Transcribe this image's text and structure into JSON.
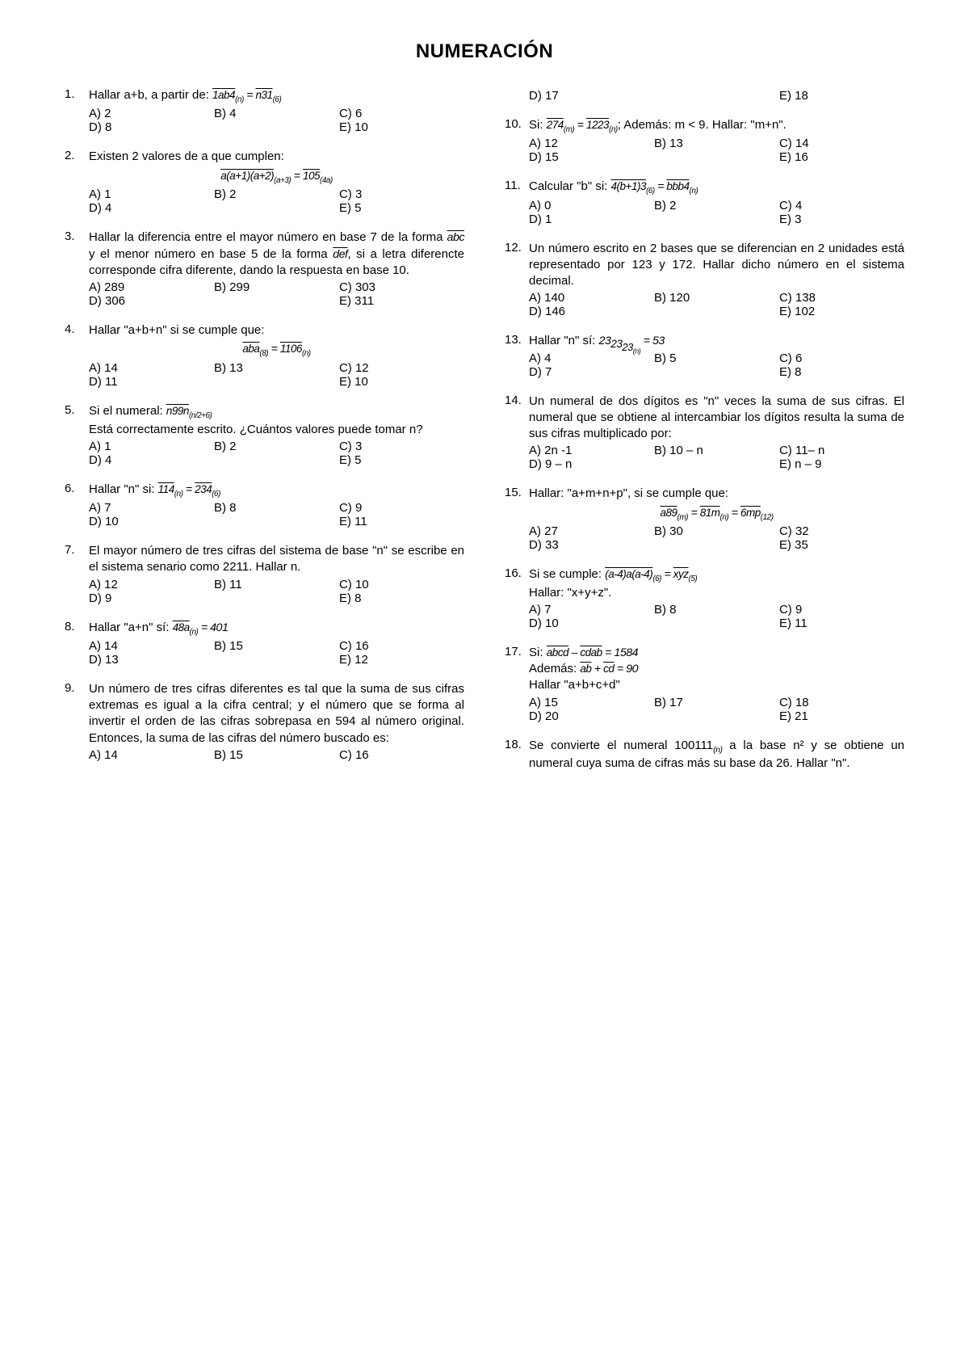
{
  "title": "NUMERACIÓN",
  "options_labels": {
    "a": "A)",
    "b": "B)",
    "c": "C)",
    "d": "D)",
    "e": "E)"
  },
  "left": [
    {
      "num": "1.",
      "text_pre": "Hallar a+b, a partir de: ",
      "eq_ov1": "1ab4",
      "eq_sub1": "(n)",
      "eq_mid": " = ",
      "eq_ov2": "n31",
      "eq_sub2": "(6)",
      "opts": {
        "a": "2",
        "b": "4",
        "c": "6",
        "d": "8",
        "e": "10"
      }
    },
    {
      "num": "2.",
      "text": "Existen 2 valores de a que cumplen:",
      "eqc_ov1": "a(a+1)(a+2)",
      "eqc_sub1": "(a+3)",
      "eqc_mid": " = ",
      "eqc_ov2": "105",
      "eqc_sub2": "(4a)",
      "opts": {
        "a": "1",
        "b": "2",
        "c": "3",
        "d": "4",
        "e": "5"
      }
    },
    {
      "num": "3.",
      "t1": "Hallar la diferencia entre el mayor número en base 7 de la forma ",
      "ov1": "abc",
      "t2": " y el menor número en base 5 de la forma ",
      "ov2": "def",
      "t3": ", si a letra diferencte corresponde cifra diferente, dando la respuesta en base 10.",
      "opts": {
        "a": "289",
        "b": "299",
        "c": "303",
        "d": "306",
        "e": "311"
      }
    },
    {
      "num": "4.",
      "text": "Hallar \"a+b+n\" si se cumple que:",
      "eqc_ov1": "aba",
      "eqc_sub1": "(8)",
      "eqc_mid": " = ",
      "eqc_ov2": "1106",
      "eqc_sub2": "(n)",
      "opts": {
        "a": "14",
        "b": "13",
        "c": "12",
        "d": "11",
        "e": "10"
      }
    },
    {
      "num": "5.",
      "t1": "Si el numeral: ",
      "ov1": "n99n",
      "sub1": "(n/2+6)",
      "t2": "Está correctamente escrito. ¿Cuántos valores puede tomar n?",
      "opts": {
        "a": "1",
        "b": "2",
        "c": "3",
        "d": "4",
        "e": "5"
      }
    },
    {
      "num": "6.",
      "t1": "Hallar \"n\" si: ",
      "ov1": "114",
      "sub1": "(n)",
      "mid": " = ",
      "ov2": "234",
      "sub2": "(6)",
      "opts": {
        "a": "7",
        "b": "8",
        "c": "9",
        "d": "10",
        "e": "11"
      }
    },
    {
      "num": "7.",
      "text": "El mayor número de tres cifras del sistema de base \"n\" se escribe en el sistema senario como 2211. Hallar n.",
      "opts": {
        "a": "12",
        "b": "11",
        "c": "10",
        "d": "9",
        "e": "8"
      }
    },
    {
      "num": "8.",
      "t1": "Hallar \"a+n\" sí: ",
      "ov1": "48a",
      "sub1": "(n)",
      "mid": " = 401",
      "opts": {
        "a": "14",
        "b": "15",
        "c": "16",
        "d": "13",
        "e": "12"
      }
    },
    {
      "num": "9.",
      "text": "Un número de tres cifras diferentes es tal que la suma de sus cifras extremas es igual a la cifra central; y el número que se forma al invertir el orden de las cifras sobrepasa en 594 al número original. Entonces, la suma de las cifras del número buscado es:",
      "opts": {
        "a": "14",
        "b": "15",
        "c": "16"
      }
    }
  ],
  "right": [
    {
      "only_opts": true,
      "opts": {
        "d": "17",
        "e": "18"
      }
    },
    {
      "num": "10.",
      "t1": "Si: ",
      "ov1": "274",
      "sub1": "(m)",
      "mid": " = ",
      "ov2": "1223",
      "sub2": "(n)",
      "t2": "; Además: m < 9. Hallar: \"m+n\".",
      "opts": {
        "a": "12",
        "b": "13",
        "c": "14",
        "d": "15",
        "e": "16"
      }
    },
    {
      "num": "11.",
      "t1": "Calcular \"b\" si: ",
      "ov1": "4(b+1)3",
      "sub1": "(6)",
      "mid": " = ",
      "ov2": "bbb4",
      "sub2": "(n)",
      "opts": {
        "a": "0",
        "b": "2",
        "c": "4",
        "d": "1",
        "e": "3"
      }
    },
    {
      "num": "12.",
      "text": "Un número escrito en 2 bases que se diferencian en 2 unidades está representado por 123 y 172. Hallar dicho número en el sistema decimal.",
      "opts": {
        "a": "140",
        "b": "120",
        "c": "138",
        "d": "146",
        "e": "102"
      }
    },
    {
      "num": "13.",
      "t1": "Hallar \"n\" sí: ",
      "nested_eq": true,
      "neq_a": "23",
      "neq_b": "23",
      "neq_c": "23",
      "neq_sub": "(n)",
      "neq_rhs": " = 53",
      "opts": {
        "a": "4",
        "b": "5",
        "c": "6",
        "d": "7",
        "e": "8"
      }
    },
    {
      "num": "14.",
      "text": "Un numeral de dos dígitos es \"n\" veces la suma de sus cifras. El numeral que se obtiene al intercambiar los dígitos resulta la suma de sus cifras multiplicado por:",
      "opts": {
        "a": "2n -1",
        "b": "10 – n",
        "c": "11– n",
        "d": "9 – n",
        "e": "n – 9"
      }
    },
    {
      "num": "15.",
      "text": "Hallar: \"a+m+n+p\", si se cumple que:",
      "eqc_ov1": "a89",
      "eqc_sub1": "(m)",
      "eqc_mid": " = ",
      "eqc_ov2": "81m",
      "eqc_sub2": "(n)",
      "eqc_mid2": " = ",
      "eqc_ov3": "6mp",
      "eqc_sub3": "(12)",
      "opts": {
        "a": "27",
        "b": "30",
        "c": "32",
        "d": "33",
        "e": "35"
      }
    },
    {
      "num": "16.",
      "t1": "Si se cumple: ",
      "ov1": "(a-4)a(a-4)",
      "sub1": "(6)",
      "mid": " = ",
      "ov2": "xyz",
      "sub2": "(5)",
      "t2": "Hallar: \"x+y+z\".",
      "opts": {
        "a": "7",
        "b": "8",
        "c": "9",
        "d": "10",
        "e": "11"
      }
    },
    {
      "num": "17.",
      "t1": "Si: ",
      "ov1": "abcd",
      "mid1": " – ",
      "ov2": "cdab",
      "mid2": " = 1584",
      "line2_pre": "Además: ",
      "l2_ov1": "ab",
      "l2_mid": " + ",
      "l2_ov2": "cd",
      "l2_post": " = 90",
      "line3": "Hallar \"a+b+c+d\"",
      "opts": {
        "a": "15",
        "b": "17",
        "c": "18",
        "d": "20",
        "e": "21"
      }
    },
    {
      "num": "18.",
      "t1": "Se convierte el numeral 100111",
      "sub1": "(n)",
      "t2": " a la base n² y se obtiene un numeral cuya suma de cifras más su base da 26. Hallar \"n\"."
    }
  ]
}
